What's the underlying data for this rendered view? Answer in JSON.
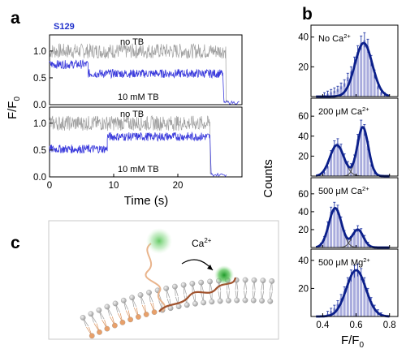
{
  "panels": {
    "a": "a",
    "b": "b",
    "c": "c"
  },
  "panel_a": {
    "tag": "S129",
    "xlabel": "Time (s)",
    "ylabel_main": "F/F",
    "ylabel_sub": "0",
    "traces": [
      {
        "top_label": "no TB",
        "bottom_label": "10 mM TB",
        "gray_level": 1.0,
        "blue_steps": [
          [
            0,
            6,
            0.75
          ],
          [
            6,
            27,
            0.58
          ]
        ],
        "end_drop": 27.5
      },
      {
        "top_label": "no TB",
        "bottom_label": "10 mM TB",
        "gray_level": 1.0,
        "blue_steps": [
          [
            0,
            9,
            0.52
          ],
          [
            9,
            25,
            0.75
          ]
        ],
        "end_drop": 25.0
      }
    ],
    "x_ticks": [
      "0",
      "10",
      "20"
    ],
    "y_ticks": [
      "0.0",
      "0.5",
      "1.0"
    ]
  },
  "panel_b": {
    "ylabel": "Counts",
    "xlabel_main": "F/F",
    "xlabel_sub": "0",
    "x_ticks": [
      "0.4",
      "0.6",
      "0.8"
    ],
    "subplots": [
      {
        "label_pre": "No Ca",
        "label_sup": "2+",
        "y_ticks": [
          "20",
          "40"
        ]
      },
      {
        "label_pre": "200 μM Ca",
        "label_sup": "2+",
        "y_ticks": [
          "20",
          "40",
          "60"
        ]
      },
      {
        "label_pre": "500 μM Ca",
        "label_sup": "2+",
        "y_ticks": [
          "20",
          "40",
          "60"
        ]
      },
      {
        "label_pre": "500 μM Mg",
        "label_sup": "2+",
        "y_ticks": [
          "20",
          "40"
        ]
      }
    ]
  },
  "panel_c": {
    "ion_label": "Ca",
    "ion_sup": "2+"
  },
  "chart_data": [
    {
      "type": "line",
      "panel": "a",
      "x_range": [
        0,
        30
      ],
      "y_range": [
        0,
        1.3
      ],
      "series": [
        {
          "name": "no TB",
          "mean_level": 1.0,
          "color": "#a0a0a0"
        },
        {
          "name": "10 mM TB",
          "steps": [
            [
              0,
              6,
              0.75
            ],
            [
              6,
              27,
              0.58
            ]
          ],
          "color": "#3b3bdc"
        }
      ]
    },
    {
      "type": "line",
      "panel": "a",
      "x_range": [
        0,
        30
      ],
      "y_range": [
        0,
        1.3
      ],
      "series": [
        {
          "name": "no TB",
          "mean_level": 1.0,
          "color": "#a0a0a0"
        },
        {
          "name": "10 mM TB",
          "steps": [
            [
              0,
              9,
              0.52
            ],
            [
              9,
              25,
              0.75
            ]
          ],
          "color": "#3b3bdc"
        }
      ]
    },
    {
      "type": "bar",
      "panel": "b",
      "x_range": [
        0.33,
        0.85
      ],
      "y_range": [
        0,
        48
      ],
      "bin_width": 0.02,
      "bins": [
        0.41,
        0.43,
        0.45,
        0.47,
        0.49,
        0.51,
        0.53,
        0.55,
        0.57,
        0.59,
        0.61,
        0.63,
        0.65,
        0.67,
        0.69,
        0.71,
        0.73,
        0.75,
        0.77
      ],
      "values": [
        1,
        2,
        3,
        4,
        5,
        7,
        9,
        13,
        17,
        23,
        30,
        36,
        38,
        34,
        24,
        15,
        7,
        3,
        1
      ],
      "gaussians": [
        {
          "a": 36,
          "mu": 0.645,
          "sigma": 0.052
        }
      ]
    },
    {
      "type": "bar",
      "panel": "b",
      "x_range": [
        0.33,
        0.85
      ],
      "y_range": [
        0,
        78
      ],
      "bin_width": 0.02,
      "bins": [
        0.41,
        0.43,
        0.45,
        0.47,
        0.49,
        0.51,
        0.53,
        0.55,
        0.57,
        0.59,
        0.61,
        0.63,
        0.65,
        0.67,
        0.69,
        0.71
      ],
      "values": [
        4,
        10,
        22,
        31,
        33,
        28,
        19,
        12,
        10,
        18,
        37,
        50,
        46,
        30,
        12,
        4
      ],
      "gaussians": [
        {
          "a": 31,
          "mu": 0.485,
          "sigma": 0.042
        },
        {
          "a": 49,
          "mu": 0.64,
          "sigma": 0.033
        }
      ]
    },
    {
      "type": "bar",
      "panel": "b",
      "x_range": [
        0.33,
        0.85
      ],
      "y_range": [
        0,
        78
      ],
      "bin_width": 0.02,
      "bins": [
        0.39,
        0.41,
        0.43,
        0.45,
        0.47,
        0.49,
        0.51,
        0.53,
        0.55,
        0.57,
        0.59,
        0.61,
        0.63,
        0.65,
        0.67
      ],
      "values": [
        3,
        10,
        25,
        40,
        45,
        42,
        30,
        16,
        8,
        10,
        17,
        21,
        18,
        11,
        4
      ],
      "gaussians": [
        {
          "a": 44,
          "mu": 0.475,
          "sigma": 0.038
        },
        {
          "a": 20,
          "mu": 0.61,
          "sigma": 0.033
        }
      ]
    },
    {
      "type": "bar",
      "panel": "b",
      "x_range": [
        0.33,
        0.85
      ],
      "y_range": [
        0,
        48
      ],
      "bin_width": 0.02,
      "bins": [
        0.43,
        0.45,
        0.47,
        0.49,
        0.51,
        0.53,
        0.55,
        0.57,
        0.59,
        0.61,
        0.63,
        0.65,
        0.67,
        0.69,
        0.71,
        0.73,
        0.75
      ],
      "values": [
        2,
        4,
        6,
        9,
        13,
        18,
        24,
        29,
        32,
        33,
        30,
        24,
        17,
        11,
        6,
        3,
        1
      ],
      "gaussians": [
        {
          "a": 33,
          "mu": 0.6,
          "sigma": 0.058
        }
      ]
    }
  ]
}
